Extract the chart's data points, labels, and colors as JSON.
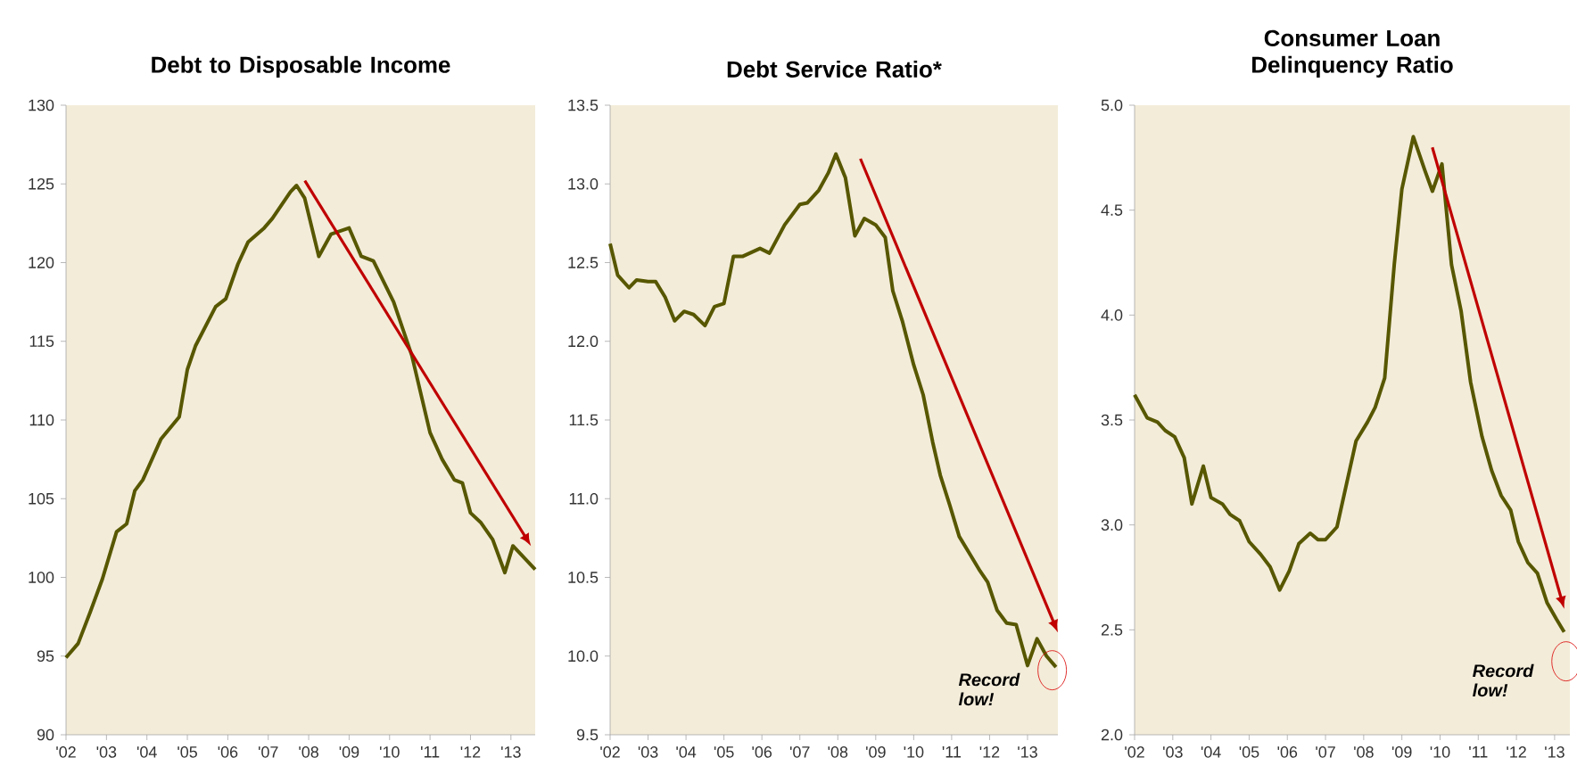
{
  "chart_data": [
    {
      "type": "line",
      "title": "Debt to Disposable Income",
      "xlim": [
        2002,
        2013.6
      ],
      "ylim": [
        90,
        130
      ],
      "yticks": [
        90,
        95,
        100,
        105,
        110,
        115,
        120,
        125,
        130
      ],
      "xticks": [
        {
          "value": 2002,
          "label": "'02"
        },
        {
          "value": 2003,
          "label": "'03"
        },
        {
          "value": 2004,
          "label": "'04"
        },
        {
          "value": 2005,
          "label": "'05"
        },
        {
          "value": 2006,
          "label": "'06"
        },
        {
          "value": 2007,
          "label": "'07"
        },
        {
          "value": 2008,
          "label": "'08"
        },
        {
          "value": 2009,
          "label": "'09"
        },
        {
          "value": 2010,
          "label": "'10"
        },
        {
          "value": 2011,
          "label": "'11"
        },
        {
          "value": 2012,
          "label": "'12"
        },
        {
          "value": 2013,
          "label": "'13"
        }
      ],
      "series": [
        {
          "color": "#575700",
          "x": [
            2002.0,
            2002.3,
            2002.6,
            2002.9,
            2003.25,
            2003.5,
            2003.7,
            2003.9,
            2004.35,
            2004.8,
            2005.0,
            2005.2,
            2005.7,
            2005.95,
            2006.25,
            2006.5,
            2006.9,
            2007.1,
            2007.55,
            2007.7,
            2007.9,
            2008.25,
            2008.55,
            2009.0,
            2009.3,
            2009.6,
            2010.1,
            2010.55,
            2011.0,
            2011.3,
            2011.6,
            2011.8,
            2012.0,
            2012.25,
            2012.55,
            2012.85,
            2013.05,
            2013.6
          ],
          "values": [
            94.9,
            95.8,
            97.8,
            99.9,
            102.9,
            103.4,
            105.5,
            106.2,
            108.8,
            110.2,
            113.2,
            114.7,
            117.2,
            117.7,
            119.9,
            121.3,
            122.2,
            122.8,
            124.5,
            124.9,
            124.1,
            120.4,
            121.8,
            122.2,
            120.4,
            120.1,
            117.5,
            114.1,
            109.2,
            107.5,
            106.2,
            106.0,
            104.1,
            103.5,
            102.4,
            100.3,
            102.0,
            100.5
          ]
        }
      ]
    },
    {
      "type": "line",
      "title": "Debt Service Ratio*",
      "xlim": [
        2002,
        2013.8
      ],
      "ylim": [
        9.5,
        13.5
      ],
      "yticks": [
        9.5,
        {
          "value": 10,
          "label": "10.0"
        },
        10.5,
        {
          "value": 11,
          "label": "11.0"
        },
        11.5,
        {
          "value": 12,
          "label": "12.0"
        },
        12.5,
        {
          "value": 13,
          "label": "13.0"
        },
        13.5
      ],
      "xticks": [
        {
          "value": 2002,
          "label": "'02"
        },
        {
          "value": 2003,
          "label": "'03"
        },
        {
          "value": 2004,
          "label": "'04"
        },
        {
          "value": 2005,
          "label": "'05"
        },
        {
          "value": 2006,
          "label": "'06"
        },
        {
          "value": 2007,
          "label": "'07"
        },
        {
          "value": 2008,
          "label": "'08"
        },
        {
          "value": 2009,
          "label": "'09"
        },
        {
          "value": 2010,
          "label": "'10"
        },
        {
          "value": 2011,
          "label": "'11"
        },
        {
          "value": 2012,
          "label": "'12"
        },
        {
          "value": 2013,
          "label": "'13"
        }
      ],
      "series": [
        {
          "color": "#575700",
          "x": [
            2002.0,
            2002.2,
            2002.5,
            2002.7,
            2003.0,
            2003.2,
            2003.45,
            2003.7,
            2003.95,
            2004.2,
            2004.5,
            2004.75,
            2005.0,
            2005.25,
            2005.5,
            2005.95,
            2006.2,
            2006.6,
            2007.0,
            2007.2,
            2007.5,
            2007.75,
            2007.95,
            2008.2,
            2008.45,
            2008.7,
            2009.0,
            2009.25,
            2009.45,
            2009.7,
            2010.0,
            2010.25,
            2010.5,
            2010.7,
            2010.95,
            2011.2,
            2011.5,
            2011.75,
            2011.95,
            2012.2,
            2012.45,
            2012.7,
            2013.0,
            2013.25,
            2013.5,
            2013.75
          ],
          "values": [
            12.62,
            12.42,
            12.34,
            12.39,
            12.38,
            12.38,
            12.28,
            12.13,
            12.19,
            12.17,
            12.1,
            12.22,
            12.24,
            12.54,
            12.54,
            12.59,
            12.56,
            12.74,
            12.87,
            12.88,
            12.96,
            13.07,
            13.19,
            13.04,
            12.67,
            12.78,
            12.74,
            12.66,
            12.32,
            12.13,
            11.85,
            11.66,
            11.36,
            11.15,
            10.96,
            10.76,
            10.64,
            10.54,
            10.47,
            10.29,
            10.21,
            10.2,
            9.94,
            10.11,
            10.0,
            9.93
          ]
        }
      ],
      "annotations": [
        {
          "text": "Record low!",
          "x": 2013.65,
          "y": 9.91
        }
      ]
    },
    {
      "type": "line",
      "title": "Consumer Loan Delinquency Ratio",
      "xlim": [
        2002,
        2013.4
      ],
      "ylim": [
        2.0,
        5.0
      ],
      "yticks": [
        {
          "value": 2,
          "label": "2.0"
        },
        2.5,
        {
          "value": 3,
          "label": "3.0"
        },
        3.5,
        {
          "value": 4,
          "label": "4.0"
        },
        4.5,
        {
          "value": 5,
          "label": "5.0"
        }
      ],
      "xticks": [
        {
          "value": 2002,
          "label": "'02"
        },
        {
          "value": 2003,
          "label": "'03"
        },
        {
          "value": 2004,
          "label": "'04"
        },
        {
          "value": 2005,
          "label": "'05"
        },
        {
          "value": 2006,
          "label": "'06"
        },
        {
          "value": 2007,
          "label": "'07"
        },
        {
          "value": 2008,
          "label": "'08"
        },
        {
          "value": 2009,
          "label": "'09"
        },
        {
          "value": 2010,
          "label": "'10"
        },
        {
          "value": 2011,
          "label": "'11"
        },
        {
          "value": 2012,
          "label": "'12"
        },
        {
          "value": 2013,
          "label": "'13"
        }
      ],
      "series": [
        {
          "color": "#575700",
          "x": [
            2002.0,
            2002.33,
            2002.6,
            2002.8,
            2003.05,
            2003.3,
            2003.5,
            2003.8,
            2004.0,
            2004.3,
            2004.5,
            2004.75,
            2005.0,
            2005.3,
            2005.55,
            2005.8,
            2006.05,
            2006.3,
            2006.6,
            2006.8,
            2007.0,
            2007.3,
            2007.8,
            2008.1,
            2008.3,
            2008.55,
            2008.8,
            2009.0,
            2009.3,
            2009.6,
            2009.8,
            2010.05,
            2010.3,
            2010.55,
            2010.8,
            2011.1,
            2011.35,
            2011.6,
            2011.85,
            2012.05,
            2012.3,
            2012.55,
            2012.8,
            2013.05,
            2013.25
          ],
          "values": [
            3.62,
            3.51,
            3.49,
            3.45,
            3.42,
            3.32,
            3.1,
            3.28,
            3.13,
            3.1,
            3.05,
            3.02,
            2.92,
            2.86,
            2.8,
            2.69,
            2.78,
            2.91,
            2.96,
            2.93,
            2.93,
            2.99,
            3.4,
            3.49,
            3.56,
            3.7,
            4.24,
            4.6,
            4.85,
            4.69,
            4.59,
            4.72,
            4.24,
            4.02,
            3.68,
            3.42,
            3.26,
            3.14,
            3.07,
            2.92,
            2.82,
            2.77,
            2.63,
            2.55,
            2.49
          ]
        }
      ],
      "annotations": [
        {
          "text": "Record low!",
          "x": 2013.3,
          "y": 2.35
        }
      ]
    }
  ]
}
